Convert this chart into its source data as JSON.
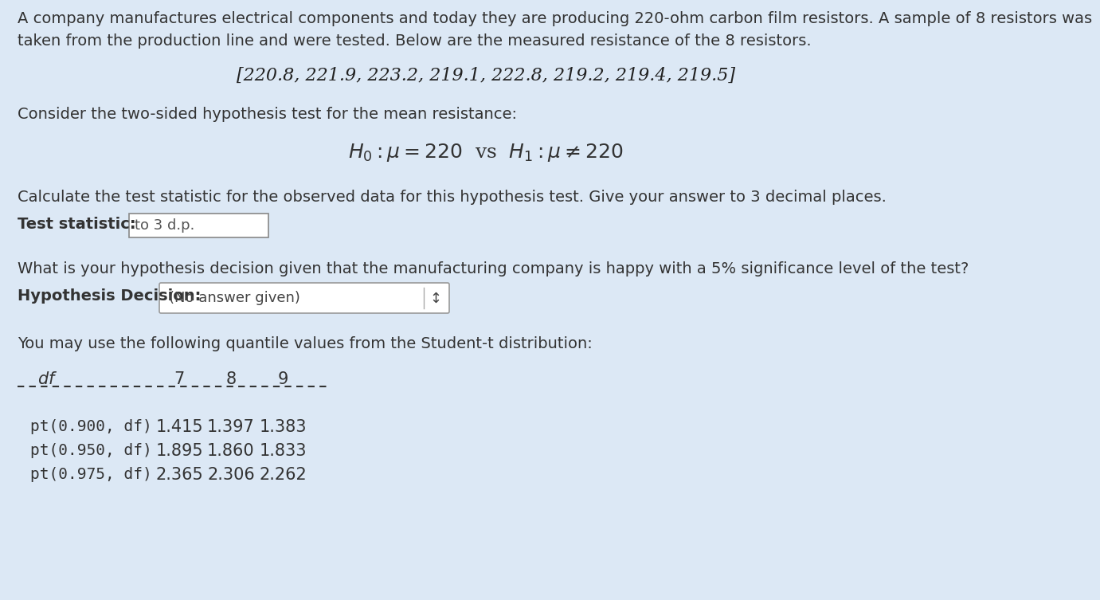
{
  "background_color": "#dce8f5",
  "para1_line1": "A company manufactures electrical components and today they are producing 220-ohm carbon film resistors. A sample of 8 resistors was",
  "para1_line2": "taken from the production line and were tested. Below are the measured resistance of the 8 resistors.",
  "data_line": "[220.8, 221.9, 223.2, 219.1, 222.8, 219.2, 219.4, 219.5]",
  "para2": "Consider the two-sided hypothesis test for the mean resistance:",
  "para3": "Calculate the test statistic for the observed data for this hypothesis test. Give your answer to 3 decimal places.",
  "label_test_stat": "Test statistic:",
  "input_box_text": "to 3 d.p.",
  "para4": "What is your hypothesis decision given that the manufacturing company is happy with a 5% significance level of the test?",
  "label_hyp_dec": "Hypothesis Decision:",
  "dropdown_text": "(No answer given)",
  "para5": "You may use the following quantile values from the Student-t distribution:",
  "table_header_col0": "df",
  "table_header_cols": [
    "7",
    "8",
    "9"
  ],
  "table_rows": [
    [
      "pt(0.900, df)",
      "1.415",
      "1.397",
      "1.383"
    ],
    [
      "pt(0.950, df)",
      "1.895",
      "1.860",
      "1.833"
    ],
    [
      "pt(0.975, df)",
      "2.365",
      "2.306",
      "2.262"
    ]
  ],
  "font_size_body": 14,
  "font_size_data": 16,
  "font_size_math": 18,
  "font_size_table": 14
}
